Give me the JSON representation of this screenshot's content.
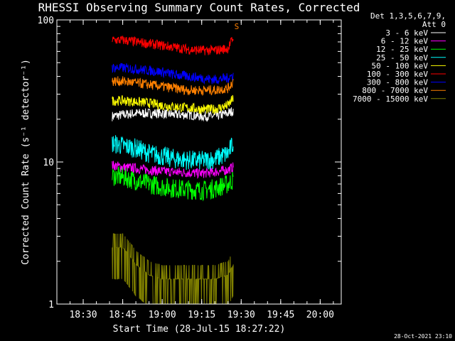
{
  "chart_data": {
    "type": "line",
    "title": "RHESSI Observing Summary Count Rates, Corrected",
    "xlabel": "Start Time (28-Jul-15 18:27:22)",
    "ylabel": "Corrected Count Rate (s⁻¹ detector⁻¹)",
    "x_unit": "minutes after 18:00 UT",
    "xlim": [
      20,
      128
    ],
    "x_ticks": [
      {
        "value": 30,
        "label": "18:30"
      },
      {
        "value": 45,
        "label": "18:45"
      },
      {
        "value": 60,
        "label": "19:00"
      },
      {
        "value": 75,
        "label": "19:15"
      },
      {
        "value": 90,
        "label": "19:30"
      },
      {
        "value": 105,
        "label": "19:45"
      },
      {
        "value": 120,
        "label": "20:00"
      }
    ],
    "y_scale": "log",
    "ylim": [
      1,
      100
    ],
    "y_ticks": [
      {
        "value": 1,
        "label": "1"
      },
      {
        "value": 10,
        "label": "10"
      },
      {
        "value": 100,
        "label": "100"
      }
    ],
    "legend": {
      "header": [
        "Det 1,3,5,6,7,9,",
        "Att 0"
      ],
      "position": "right"
    },
    "series": [
      {
        "name": "3 - 6 keV",
        "color": "#ffffff",
        "x": [
          41,
          45,
          50,
          55,
          60,
          65,
          70,
          75,
          80,
          85,
          87
        ],
        "y": [
          21,
          21.5,
          22,
          22,
          22,
          21.5,
          21.5,
          21,
          21,
          22,
          23
        ]
      },
      {
        "name": "6 - 12 keV",
        "color": "#ff00ff",
        "x": [
          41,
          45,
          50,
          55,
          60,
          65,
          70,
          75,
          80,
          85,
          87
        ],
        "y": [
          9.5,
          9.2,
          9,
          8.8,
          8.6,
          8.5,
          8.4,
          8.3,
          8.5,
          8.8,
          9.2
        ]
      },
      {
        "name": "12 - 25 keV",
        "color": "#00ff00",
        "x": [
          41,
          45,
          50,
          55,
          60,
          65,
          70,
          75,
          80,
          85,
          87
        ],
        "y": [
          8,
          7.8,
          7.4,
          7,
          6.7,
          6.5,
          6.4,
          6.3,
          6.5,
          7,
          7.5
        ]
      },
      {
        "name": "25 - 50 keV",
        "color": "#00ffff",
        "x": [
          41,
          45,
          50,
          55,
          60,
          65,
          70,
          75,
          80,
          85,
          87
        ],
        "y": [
          13.5,
          13,
          12.5,
          11.5,
          11,
          10.5,
          10.3,
          10.2,
          10.5,
          11.5,
          13.5
        ]
      },
      {
        "name": "50 - 100 keV",
        "color": "#ffff00",
        "x": [
          41,
          45,
          50,
          55,
          60,
          65,
          70,
          75,
          80,
          85,
          87
        ],
        "y": [
          27,
          27,
          26.5,
          26,
          25,
          24.5,
          24,
          23.5,
          23.5,
          25,
          28
        ]
      },
      {
        "name": "100 - 300 keV",
        "color": "#ff0000",
        "x": [
          41,
          45,
          50,
          55,
          60,
          65,
          70,
          75,
          80,
          85,
          87
        ],
        "y": [
          72,
          72,
          70,
          68,
          66,
          64,
          62,
          61,
          61,
          63,
          75
        ]
      },
      {
        "name": "300 - 800 keV",
        "color": "#0000ff",
        "x": [
          41,
          45,
          50,
          55,
          60,
          65,
          70,
          75,
          80,
          85,
          87
        ],
        "y": [
          46,
          46,
          45,
          44,
          43,
          41,
          40,
          39,
          38,
          39,
          41
        ]
      },
      {
        "name": "800 - 7000 keV",
        "color": "#ff8000",
        "x": [
          41,
          45,
          50,
          55,
          60,
          65,
          70,
          75,
          80,
          85,
          87
        ],
        "y": [
          37,
          37,
          36,
          35,
          34,
          33,
          32,
          32,
          32,
          33,
          37
        ]
      },
      {
        "name": "7000 - 15000 keV",
        "color": "#808000",
        "x": [
          41,
          45,
          50,
          55,
          60,
          65,
          70,
          75,
          80,
          85,
          87
        ],
        "y": [
          2.5,
          2.5,
          1.9,
          1.6,
          1.5,
          1.5,
          1.5,
          1.5,
          1.5,
          1.6,
          1.9
        ]
      }
    ],
    "annotations": [
      {
        "label": "S",
        "color": "#ff8000",
        "x": 88.3,
        "y": 91
      }
    ],
    "timestamp": "28-Oct-2021 23:10"
  }
}
